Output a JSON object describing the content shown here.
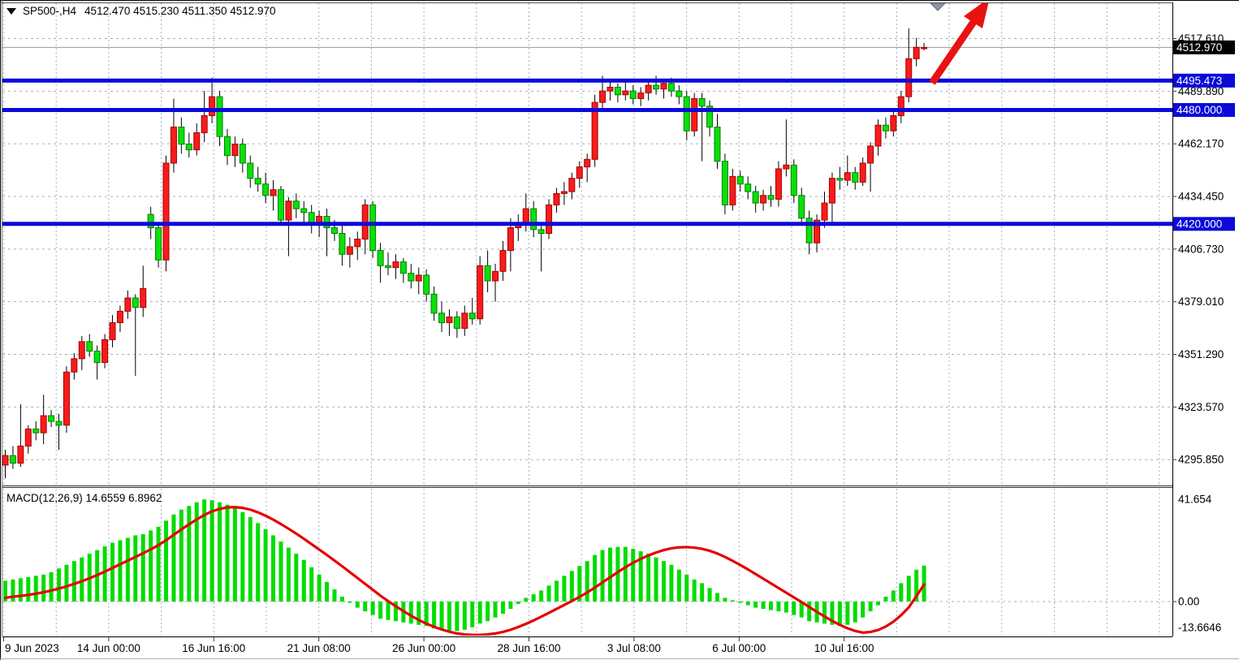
{
  "header": {
    "symbol_period": "SP500-,H4",
    "ohlc_string": "4512.470 4515.230 4511.350 4512.970",
    "collapse_icon": "triangle-down"
  },
  "colors": {
    "bull_body": "#f81c1c",
    "bull_border": "#a50000",
    "bear_body": "#0ae00a",
    "bear_border": "#008000",
    "wick": "#000000",
    "grid": "#a6afc0",
    "level_line": "#0a0ad9",
    "current_price_line": "#9a9a9a",
    "current_price_label_bg": "#000000",
    "macd_hist": "#00dd00",
    "macd_signal": "#e60000",
    "arrow": "#e81212",
    "top_marker": "#8d96a6",
    "axis_text": "#000000"
  },
  "price_axis": {
    "gridline_labels": [
      {
        "value": 4517.61,
        "label": "4517.610"
      },
      {
        "value": 4489.89,
        "label": "4489.890"
      },
      {
        "value": 4462.17,
        "label": "4462.170"
      },
      {
        "value": 4434.45,
        "label": "4434.450"
      },
      {
        "value": 4406.73,
        "label": "4406.730"
      },
      {
        "value": 4379.01,
        "label": "4379.010"
      },
      {
        "value": 4351.29,
        "label": "4351.290"
      },
      {
        "value": 4323.57,
        "label": "4323.570"
      },
      {
        "value": 4295.85,
        "label": "4295.850"
      }
    ],
    "current_price": {
      "value": 4512.97,
      "label": "4512.970"
    },
    "level_lines": [
      {
        "value": 4495.473,
        "label": "4495.473"
      },
      {
        "value": 4480.0,
        "label": "4480.000"
      },
      {
        "value": 4420.0,
        "label": "4420.000"
      }
    ]
  },
  "time_axis": {
    "labels": [
      {
        "text": "9 Jun 2023",
        "grid_index": 0,
        "align": "left"
      },
      {
        "text": "14 Jun 00:00",
        "grid_index": 2,
        "align": "center"
      },
      {
        "text": "16 Jun 16:00",
        "grid_index": 4,
        "align": "center"
      },
      {
        "text": "21 Jun 08:00",
        "grid_index": 6,
        "align": "center"
      },
      {
        "text": "26 Jun 00:00",
        "grid_index": 8,
        "align": "center"
      },
      {
        "text": "28 Jun 16:00",
        "grid_index": 10,
        "align": "center"
      },
      {
        "text": "3 Jul 08:00",
        "grid_index": 12,
        "align": "center"
      },
      {
        "text": "6 Jul 00:00",
        "grid_index": 14,
        "align": "center"
      },
      {
        "text": "10 Jul 16:00",
        "grid_index": 16,
        "align": "center"
      }
    ]
  },
  "chart_data": {
    "type": "candlestick",
    "title": "SP500-,H4",
    "symbol": "SP500-",
    "timeframe": "H4",
    "visible_price_range": [
      4286,
      4523
    ],
    "grid_price_step": 27.72,
    "candles": [
      [
        4293,
        4301,
        4286,
        4298
      ],
      [
        4298,
        4303,
        4291,
        4294
      ],
      [
        4294,
        4325,
        4292,
        4303
      ],
      [
        4303,
        4314,
        4299,
        4312
      ],
      [
        4312,
        4316,
        4306,
        4310
      ],
      [
        4310,
        4330,
        4304,
        4319
      ],
      [
        4319,
        4322,
        4313,
        4316
      ],
      [
        4316,
        4320,
        4301,
        4314
      ],
      [
        4314,
        4345,
        4310,
        4342
      ],
      [
        4342,
        4352,
        4338,
        4349
      ],
      [
        4349,
        4361,
        4343,
        4358
      ],
      [
        4358,
        4362,
        4350,
        4353
      ],
      [
        4353,
        4356,
        4338,
        4347
      ],
      [
        4347,
        4362,
        4344,
        4359
      ],
      [
        4359,
        4372,
        4355,
        4368
      ],
      [
        4368,
        4377,
        4363,
        4374
      ],
      [
        4374,
        4385,
        4370,
        4381
      ],
      [
        4381,
        4383,
        4340,
        4376
      ],
      [
        4376,
        4398,
        4371,
        4386
      ],
      [
        4425,
        4429,
        4412,
        4418
      ],
      [
        4418,
        4420,
        4397,
        4401
      ],
      [
        4401,
        4456,
        4395,
        4452
      ],
      [
        4452,
        4486,
        4447,
        4471
      ],
      [
        4471,
        4476,
        4457,
        4462
      ],
      [
        4462,
        4468,
        4455,
        4459
      ],
      [
        4459,
        4473,
        4456,
        4468
      ],
      [
        4468,
        4490,
        4463,
        4477
      ],
      [
        4477,
        4497,
        4473,
        4487
      ],
      [
        4487,
        4490,
        4461,
        4466
      ],
      [
        4466,
        4470,
        4451,
        4456
      ],
      [
        4456,
        4466,
        4450,
        4462
      ],
      [
        4462,
        4465,
        4447,
        4452
      ],
      [
        4452,
        4456,
        4439,
        4444
      ],
      [
        4444,
        4450,
        4437,
        4441
      ],
      [
        4441,
        4447,
        4431,
        4435
      ],
      [
        4435,
        4443,
        4427,
        4438
      ],
      [
        4438,
        4440,
        4419,
        4422
      ],
      [
        4422,
        4434,
        4403,
        4432
      ],
      [
        4432,
        4436,
        4423,
        4428
      ],
      [
        4428,
        4432,
        4420,
        4426
      ],
      [
        4426,
        4430,
        4415,
        4420
      ],
      [
        4420,
        4427,
        4413,
        4424
      ],
      [
        4424,
        4428,
        4403,
        4418
      ],
      [
        4418,
        4422,
        4411,
        4415
      ],
      [
        4415,
        4421,
        4398,
        4404
      ],
      [
        4404,
        4413,
        4397,
        4408
      ],
      [
        4408,
        4416,
        4401,
        4412
      ],
      [
        4412,
        4433,
        4404,
        4430
      ],
      [
        4430,
        4432,
        4402,
        4406
      ],
      [
        4406,
        4410,
        4389,
        4398
      ],
      [
        4398,
        4405,
        4393,
        4397
      ],
      [
        4397,
        4404,
        4391,
        4400
      ],
      [
        4400,
        4402,
        4389,
        4394
      ],
      [
        4394,
        4399,
        4386,
        4390
      ],
      [
        4390,
        4397,
        4383,
        4393
      ],
      [
        4393,
        4396,
        4379,
        4383
      ],
      [
        4383,
        4387,
        4369,
        4373
      ],
      [
        4373,
        4379,
        4363,
        4368
      ],
      [
        4368,
        4375,
        4361,
        4371
      ],
      [
        4371,
        4374,
        4360,
        4365
      ],
      [
        4365,
        4377,
        4361,
        4373
      ],
      [
        4373,
        4381,
        4367,
        4370
      ],
      [
        4370,
        4403,
        4367,
        4398
      ],
      [
        4398,
        4406,
        4384,
        4390
      ],
      [
        4390,
        4399,
        4379,
        4395
      ],
      [
        4395,
        4411,
        4390,
        4406
      ],
      [
        4406,
        4423,
        4395,
        4418
      ],
      [
        4418,
        4425,
        4411,
        4420
      ],
      [
        4420,
        4436,
        4416,
        4428
      ],
      [
        4428,
        4432,
        4413,
        4417
      ],
      [
        4417,
        4421,
        4395,
        4415
      ],
      [
        4415,
        4433,
        4412,
        4430
      ],
      [
        4430,
        4439,
        4426,
        4436
      ],
      [
        4436,
        4442,
        4430,
        4437
      ],
      [
        4437,
        4447,
        4433,
        4444
      ],
      [
        4444,
        4453,
        4439,
        4450
      ],
      [
        4450,
        4457,
        4442,
        4454
      ],
      [
        4454,
        4488,
        4450,
        4484
      ],
      [
        4484,
        4498,
        4480,
        4490
      ],
      [
        4490,
        4495,
        4485,
        4492
      ],
      [
        4492,
        4494,
        4484,
        4488
      ],
      [
        4488,
        4495,
        4485,
        4490
      ],
      [
        4490,
        4493,
        4483,
        4486
      ],
      [
        4486,
        4492,
        4482,
        4489
      ],
      [
        4489,
        4496,
        4485,
        4493
      ],
      [
        4493,
        4498,
        4488,
        4491
      ],
      [
        4491,
        4496,
        4486,
        4494
      ],
      [
        4494,
        4497,
        4487,
        4490
      ],
      [
        4490,
        4493,
        4483,
        4487
      ],
      [
        4487,
        4490,
        4464,
        4469
      ],
      [
        4469,
        4489,
        4466,
        4486
      ],
      [
        4486,
        4489,
        4453,
        4482
      ],
      [
        4482,
        4485,
        4466,
        4471
      ],
      [
        4471,
        4478,
        4449,
        4453
      ],
      [
        4453,
        4457,
        4425,
        4430
      ],
      [
        4430,
        4449,
        4427,
        4445
      ],
      [
        4445,
        4448,
        4437,
        4441
      ],
      [
        4441,
        4445,
        4433,
        4437
      ],
      [
        4437,
        4440,
        4426,
        4431
      ],
      [
        4431,
        4438,
        4427,
        4435
      ],
      [
        4435,
        4440,
        4429,
        4433
      ],
      [
        4433,
        4453,
        4429,
        4449
      ],
      [
        4449,
        4475,
        4445,
        4451
      ],
      [
        4451,
        4454,
        4431,
        4435
      ],
      [
        4435,
        4439,
        4419,
        4423
      ],
      [
        4423,
        4427,
        4404,
        4410
      ],
      [
        4410,
        4425,
        4405,
        4422
      ],
      [
        4422,
        4437,
        4418,
        4431
      ],
      [
        4431,
        4447,
        4421,
        4444
      ],
      [
        4444,
        4450,
        4438,
        4443
      ],
      [
        4443,
        4456,
        4440,
        4447
      ],
      [
        4447,
        4450,
        4438,
        4442
      ],
      [
        4442,
        4455,
        4440,
        4452
      ],
      [
        4452,
        4463,
        4437,
        4461
      ],
      [
        4461,
        4475,
        4456,
        4472
      ],
      [
        4472,
        4476,
        4465,
        4469
      ],
      [
        4469,
        4479,
        4466,
        4477
      ],
      [
        4477,
        4490,
        4473,
        4487
      ],
      [
        4487,
        4523,
        4484,
        4507
      ],
      [
        4507,
        4518,
        4503,
        4513
      ],
      [
        4512.47,
        4515.23,
        4511.35,
        4512.97
      ]
    ],
    "macd": {
      "label": "MACD(12,26,9) 14.6559 6.8962",
      "params": [
        12,
        26,
        9
      ],
      "macd_value": 14.6559,
      "signal_value": 6.8962,
      "axis_labels": [
        {
          "value": 41.654,
          "label": "41.654"
        },
        {
          "value": 0,
          "label": "0.00"
        },
        {
          "value": -13.6646,
          "label": "-13.6646"
        }
      ],
      "range": [
        -13.6646,
        41.654
      ],
      "histogram": [
        8.5,
        9,
        9.5,
        10,
        10.5,
        11,
        12,
        13.5,
        15,
        16.5,
        18,
        19.5,
        21,
        22.5,
        24,
        25,
        26,
        27,
        27.5,
        29,
        30.5,
        33,
        35.5,
        37.5,
        39,
        40.5,
        41.65,
        41.3,
        40.5,
        39.5,
        38,
        36.5,
        34.5,
        32,
        29.5,
        27,
        24.5,
        22,
        19.5,
        17,
        14,
        11,
        8,
        5,
        2,
        -0.5,
        -2.5,
        -4,
        -5.5,
        -7,
        -7.5,
        -8,
        -8.5,
        -9,
        -9.5,
        -10,
        -11,
        -11.5,
        -12,
        -12,
        -11.5,
        -10.5,
        -9,
        -8,
        -6.5,
        -5,
        -3,
        -1,
        1.5,
        3,
        4.5,
        6.5,
        8.5,
        10.5,
        12.5,
        14.5,
        16.5,
        19,
        21,
        22,
        22.3,
        22.3,
        21.5,
        20.5,
        19.5,
        18,
        16.5,
        15,
        13,
        11,
        9,
        7.5,
        5.5,
        3.5,
        1.5,
        0.5,
        -0.5,
        -1.5,
        -2.5,
        -3,
        -3.5,
        -4,
        -4.5,
        -5.5,
        -6.5,
        -8,
        -8.5,
        -9,
        -9.5,
        -10,
        -9.5,
        -8.5,
        -6.5,
        -4,
        -1.5,
        2,
        4.5,
        7.5,
        10.5,
        13,
        14.66
      ],
      "signal": [
        1.5,
        2,
        2.3,
        2.7,
        3.2,
        3.8,
        4.5,
        5.3,
        6.2,
        7.2,
        8.3,
        9.5,
        10.8,
        12.2,
        13.7,
        15.2,
        16.7,
        18.2,
        19.7,
        21.3,
        23,
        25,
        27.2,
        29.4,
        31.5,
        33.5,
        35.3,
        36.8,
        37.8,
        38.4,
        38.5,
        38.2,
        37.5,
        36.4,
        35,
        33.4,
        31.6,
        29.7,
        27.7,
        25.6,
        23.4,
        21.2,
        19,
        16.7,
        14.4,
        12,
        9.6,
        7.2,
        4.8,
        2.4,
        0.2,
        -1.9,
        -3.9,
        -5.8,
        -7.5,
        -9,
        -10.3,
        -11.4,
        -12.3,
        -13,
        -13.4,
        -13.6,
        -13.6,
        -13.4,
        -13,
        -12.4,
        -11.5,
        -10.4,
        -9.1,
        -7.7,
        -6.2,
        -4.6,
        -3,
        -1.4,
        0.2,
        1.9,
        3.7,
        5.7,
        7.8,
        9.9,
        12,
        14,
        15.8,
        17.4,
        18.8,
        20,
        21,
        21.7,
        22.1,
        22.2,
        22,
        21.5,
        20.7,
        19.6,
        18.2,
        16.6,
        14.9,
        13.1,
        11.2,
        9.3,
        7.4,
        5.5,
        3.6,
        1.7,
        -0.2,
        -2.2,
        -4.2,
        -6.1,
        -7.9,
        -9.5,
        -10.9,
        -12,
        -12.7,
        -12.4,
        -11.6,
        -10.2,
        -8.2,
        -5.6,
        -2.4,
        2.2,
        6.9
      ]
    },
    "annotations": {
      "trend_arrow": {
        "direction": "up-right",
        "color": "#e81212"
      },
      "top_marker": {
        "shape": "down-triangle",
        "color": "#8d96a6"
      }
    }
  }
}
